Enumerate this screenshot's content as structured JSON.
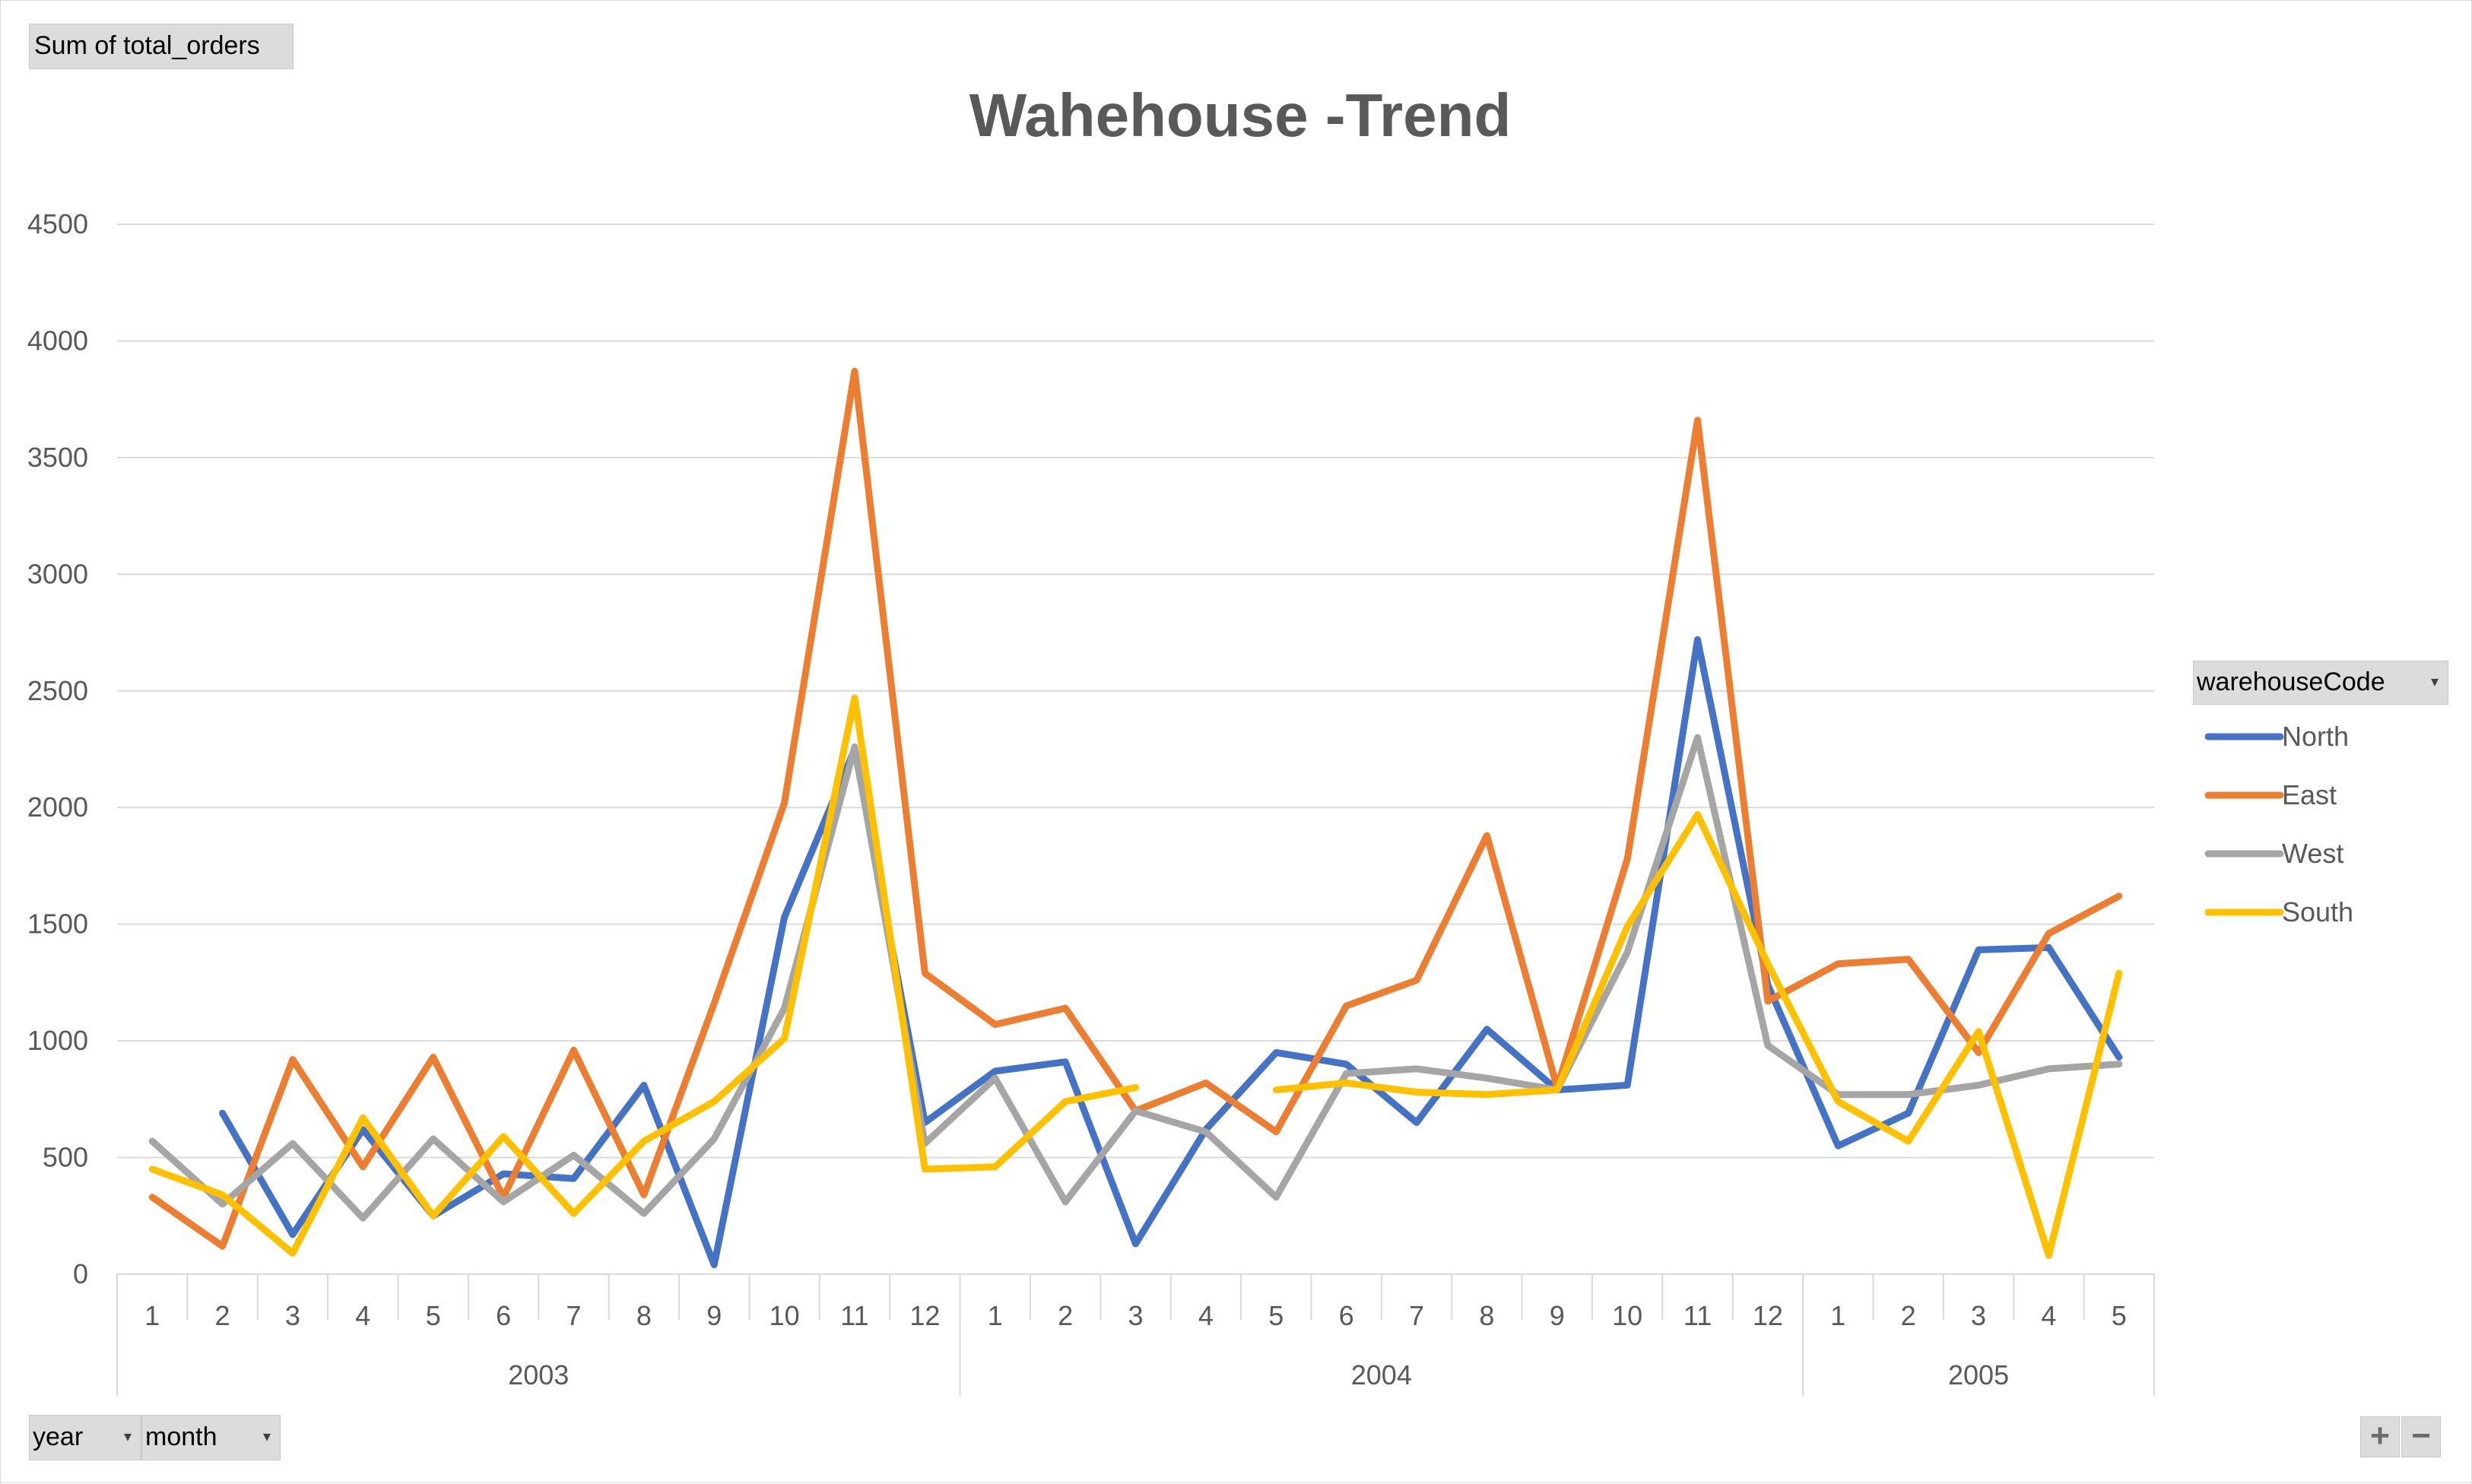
{
  "pivot": {
    "value_field": "Sum of total_orders",
    "legend_field": "warehouseCode",
    "axis_fields": [
      "year",
      "month"
    ],
    "zoom_in": "+",
    "zoom_out": "−"
  },
  "chart_data": {
    "type": "line",
    "title": "Wahehouse -Trend",
    "xlabel": "",
    "ylabel": "",
    "ylim": [
      0,
      4500
    ],
    "yticks": [
      0,
      500,
      1000,
      1500,
      2000,
      2500,
      3000,
      3500,
      4000,
      4500
    ],
    "grid": true,
    "legend_position": "right",
    "categories": [
      "1",
      "2",
      "3",
      "4",
      "5",
      "6",
      "7",
      "8",
      "9",
      "10",
      "11",
      "12",
      "1",
      "2",
      "3",
      "4",
      "5",
      "6",
      "7",
      "8",
      "9",
      "10",
      "11",
      "12",
      "1",
      "2",
      "3",
      "4",
      "5"
    ],
    "groups": [
      {
        "label": "2003",
        "start": 0,
        "count": 12
      },
      {
        "label": "2004",
        "start": 12,
        "count": 12
      },
      {
        "label": "2005",
        "start": 24,
        "count": 5
      }
    ],
    "series": [
      {
        "name": "North",
        "color": "#4472C4",
        "values": [
          null,
          690,
          170,
          620,
          250,
          430,
          410,
          810,
          40,
          1530,
          2250,
          650,
          870,
          910,
          130,
          620,
          950,
          900,
          650,
          1050,
          790,
          810,
          2720,
          1240,
          550,
          690,
          1390,
          1400,
          930
        ]
      },
      {
        "name": "East",
        "color": "#ED7D31",
        "values": [
          330,
          120,
          920,
          460,
          930,
          330,
          960,
          340,
          1160,
          2020,
          3870,
          1290,
          1070,
          1140,
          700,
          820,
          610,
          1150,
          1260,
          1880,
          800,
          1780,
          3660,
          1170,
          1330,
          1350,
          950,
          1460,
          1620
        ]
      },
      {
        "name": "West",
        "color": "#A5A5A5",
        "values": [
          570,
          300,
          560,
          240,
          580,
          310,
          510,
          260,
          580,
          1140,
          2260,
          560,
          840,
          310,
          700,
          610,
          330,
          860,
          880,
          840,
          790,
          1380,
          2300,
          980,
          770,
          770,
          810,
          880,
          900
        ]
      },
      {
        "name": "South",
        "color": "#FFC000",
        "values": [
          450,
          340,
          90,
          670,
          250,
          590,
          260,
          570,
          740,
          1010,
          2470,
          450,
          460,
          740,
          800,
          null,
          790,
          820,
          780,
          770,
          790,
          1490,
          1970,
          1330,
          740,
          570,
          1040,
          80,
          1290
        ]
      }
    ]
  }
}
